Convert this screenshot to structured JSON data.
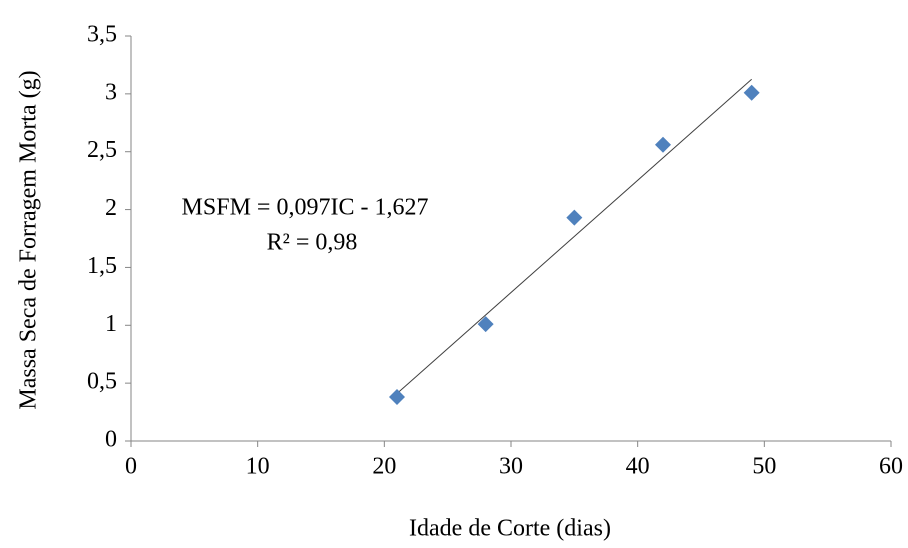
{
  "chart_data": {
    "type": "scatter",
    "x_label": "Idade de Corte (dias)",
    "y_label": "Massa Seca de Forragem Morta (g)",
    "x": [
      21,
      28,
      35,
      42,
      49
    ],
    "values": [
      0.38,
      1.01,
      1.93,
      2.56,
      3.01
    ],
    "color": "#4f81bd",
    "trendline": {
      "slope": 0.097,
      "intercept": -1.627,
      "color": "#404040",
      "equation": "MSFM = 0,097IC - 1,627",
      "r2_label": "R² = 0,98"
    },
    "xlim": [
      0,
      60
    ],
    "xticks": [
      0,
      10,
      20,
      30,
      40,
      50,
      60
    ],
    "ylim": [
      0,
      3.5
    ],
    "yticks": [
      0,
      {
        "value": 0.5,
        "label": "0,5"
      },
      1,
      {
        "value": 1.5,
        "label": "1,5"
      },
      2,
      {
        "value": 2.5,
        "label": "2,5"
      },
      3,
      {
        "value": 3.5,
        "label": "3,5"
      }
    ],
    "grid": false
  }
}
